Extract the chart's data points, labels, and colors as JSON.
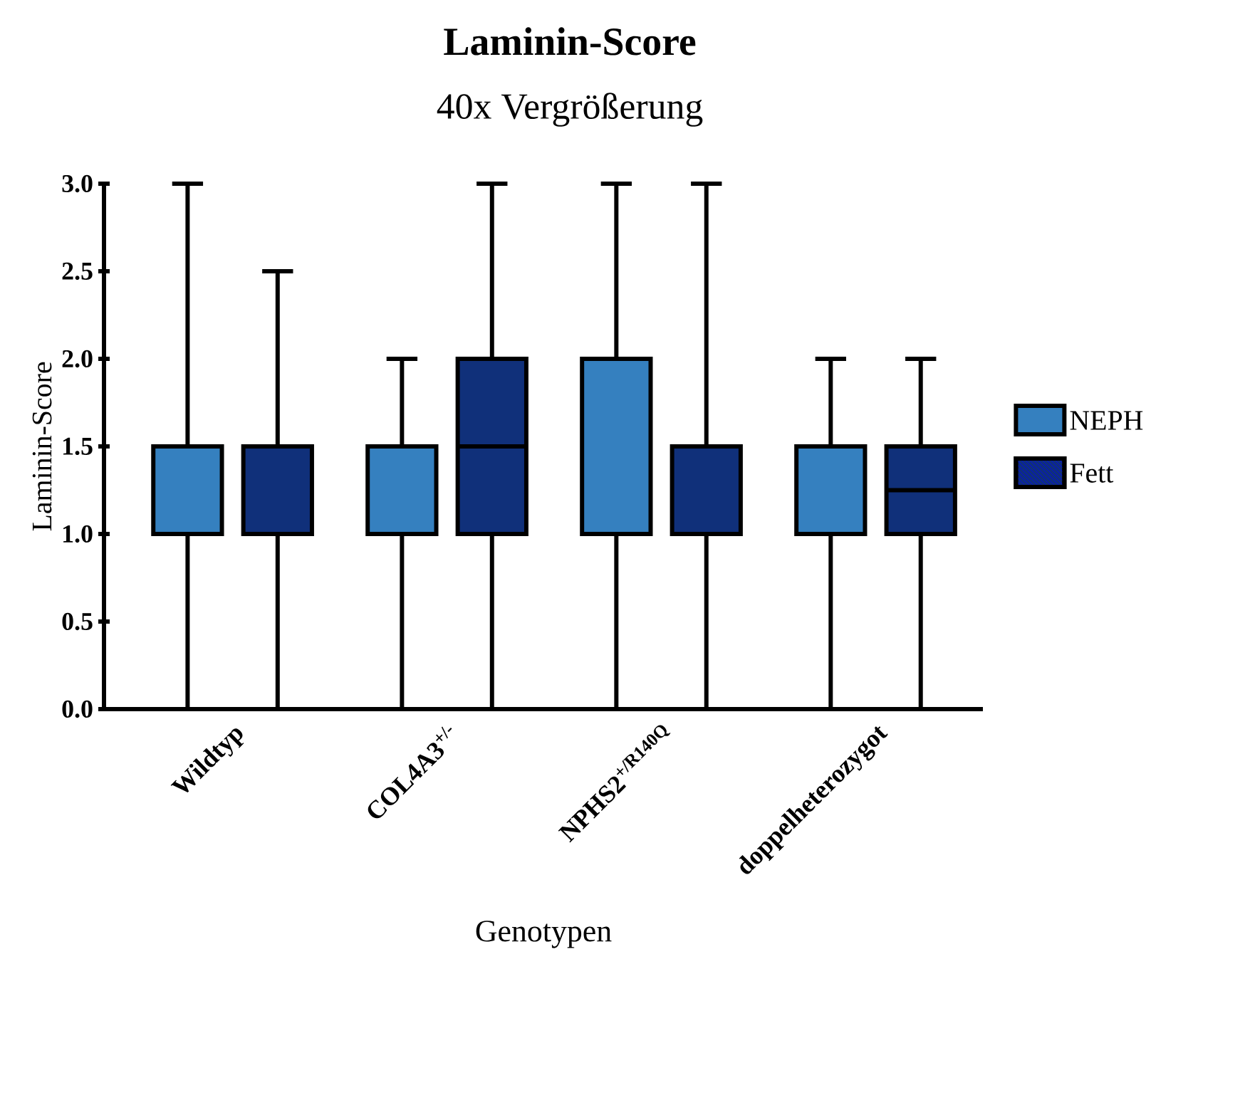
{
  "chart_data": {
    "type": "box",
    "title": "Laminin-Score",
    "subtitle": "40x Vergrößerung",
    "xlabel": "Genotypen",
    "ylabel": "Laminin-Score",
    "categories": [
      "Wildtyp",
      "COL4A3$^{+/-}$",
      "NPHS2$^{+/R140Q}$",
      "doppelheterozygot"
    ],
    "series": [
      {
        "name": "NEPH",
        "color": "#3580bf",
        "boxes": [
          {
            "low": 0,
            "q1": 1.0,
            "median": 1.0,
            "q3": 1.5,
            "high": 3.0
          },
          {
            "low": 0,
            "q1": 1.0,
            "median": 1.5,
            "q3": 1.5,
            "high": 2.0
          },
          {
            "low": 0,
            "q1": 1.0,
            "median": 1.0,
            "q3": 2.0,
            "high": 3.0
          },
          {
            "low": 0,
            "q1": 1.0,
            "median": 1.5,
            "q3": 1.5,
            "high": 2.0
          }
        ]
      },
      {
        "name": "Fett",
        "color": "#10307a",
        "boxes": [
          {
            "low": 0,
            "q1": 1.0,
            "median": 1.0,
            "q3": 1.5,
            "high": 2.5
          },
          {
            "low": 0,
            "q1": 1.0,
            "median": 1.5,
            "q3": 2.0,
            "high": 3.0
          },
          {
            "low": 0,
            "q1": 1.0,
            "median": 1.0,
            "q3": 1.5,
            "high": 3.0
          },
          {
            "low": 0,
            "q1": 1.0,
            "median": 1.25,
            "q3": 1.5,
            "high": 2.0
          }
        ]
      }
    ],
    "ylim": [
      0,
      3
    ],
    "yticks": [
      {
        "value": 0,
        "label": "0.0"
      },
      {
        "value": 0.5,
        "label": "0.5"
      },
      {
        "value": 1,
        "label": "1.0"
      },
      {
        "value": 1.5,
        "label": "1.5"
      },
      {
        "value": 2,
        "label": "2.0"
      },
      {
        "value": 2.5,
        "label": "2.5"
      },
      {
        "value": 3,
        "label": "3.0"
      }
    ],
    "grid": false,
    "legend": "right"
  }
}
